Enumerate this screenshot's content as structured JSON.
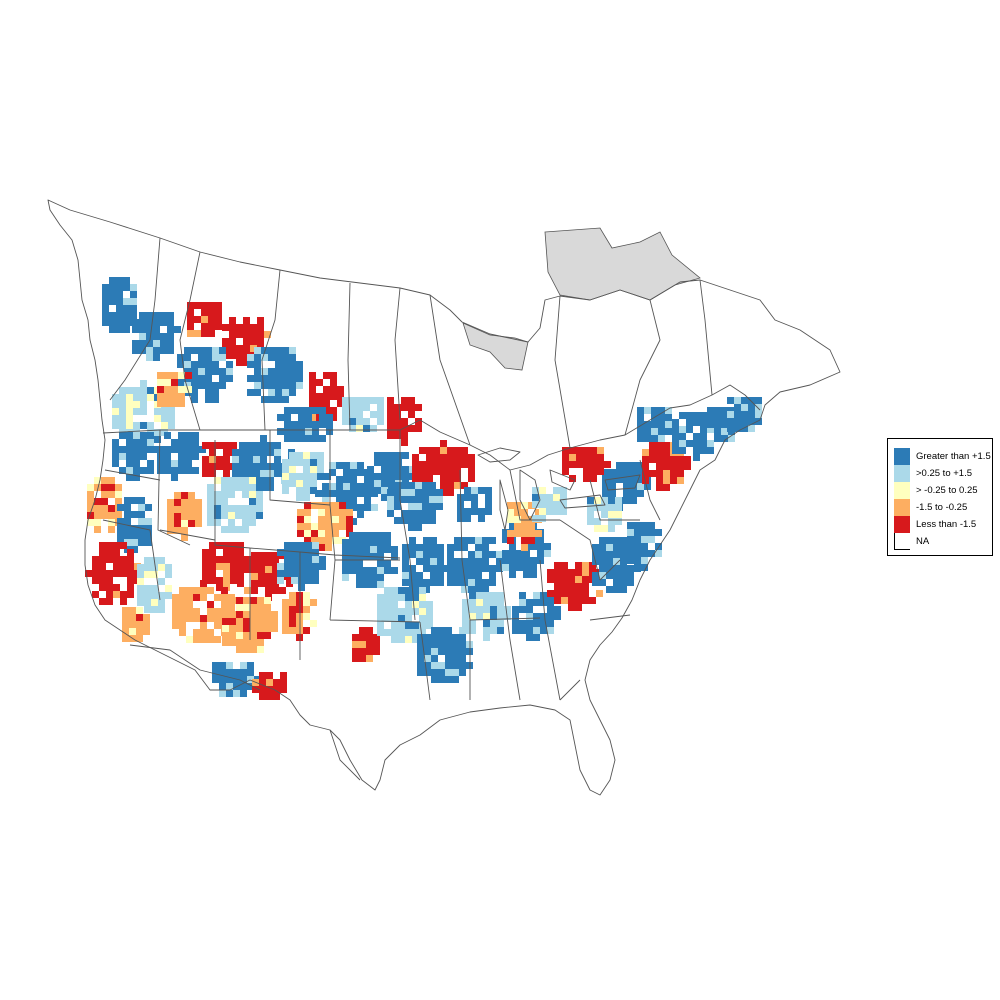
{
  "legend": {
    "items": [
      {
        "label": "Greater than +1.5",
        "color": "#2c7bb6"
      },
      {
        "label": ">0.25 to +1.5",
        "color": "#abd9e9"
      },
      {
        "label": "> -0.25 to 0.25",
        "color": "#ffffbf"
      },
      {
        "label": "-1.5 to -0.25",
        "color": "#fdae61"
      },
      {
        "label": "Less than -1.5",
        "color": "#d7191c"
      },
      {
        "label": "NA",
        "color": "#ffffff"
      }
    ]
  },
  "colors": {
    "na_region": "#d9d9d9",
    "border": "#555555",
    "background": "#ffffff"
  }
}
